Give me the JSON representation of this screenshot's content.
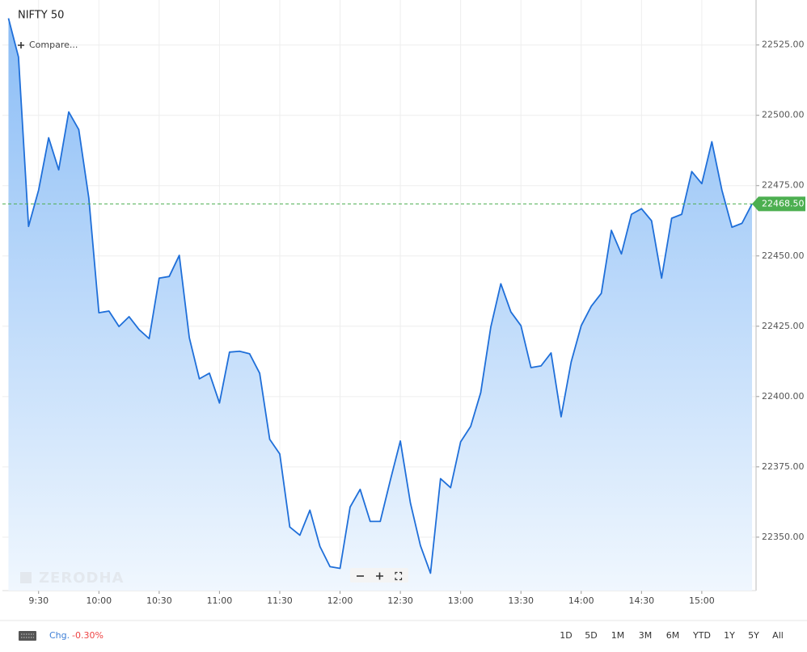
{
  "chart_data": {
    "type": "line",
    "title": "NIFTY 50",
    "x": [
      555,
      560,
      565,
      570,
      575,
      580,
      585,
      590,
      595,
      600,
      605,
      610,
      615,
      620,
      625,
      630,
      635,
      640,
      645,
      650,
      655,
      660,
      665,
      670,
      675,
      680,
      685,
      690,
      695,
      700,
      705,
      710,
      715,
      720,
      725,
      730,
      735,
      740,
      745,
      750,
      755,
      760,
      765,
      770,
      775,
      780,
      785,
      790,
      795,
      800,
      805,
      810,
      815,
      820,
      825,
      830,
      835,
      840,
      845,
      850,
      855,
      860,
      865,
      870,
      875,
      880,
      885,
      890,
      895,
      900,
      905,
      910,
      915,
      920,
      925
    ],
    "series": [
      {
        "name": "NIFTY 50",
        "color": "#1f6fd9",
        "values": [
          22534.5,
          22520.7,
          22460.5,
          22473.4,
          22492.0,
          22480.6,
          22501.2,
          22494.9,
          22470.5,
          22429.8,
          22430.4,
          22424.9,
          22428.4,
          22423.8,
          22420.6,
          22442.1,
          22442.7,
          22450.2,
          22420.9,
          22406.3,
          22408.3,
          22397.7,
          22415.8,
          22416.1,
          22415.2,
          22408.3,
          22384.8,
          22379.6,
          22353.6,
          22350.7,
          22359.6,
          22346.7,
          22339.5,
          22338.9,
          22360.7,
          22367.0,
          22355.6,
          22355.6,
          22370.2,
          22384.2,
          22362.2,
          22347.0,
          22337.2,
          22370.8,
          22367.6,
          22383.9,
          22389.4,
          22401.4,
          22424.7,
          22440.1,
          22430.1,
          22425.2,
          22410.3,
          22410.9,
          22415.5,
          22392.8,
          22412.3,
          22425.2,
          22432.1,
          22436.7,
          22459.1,
          22450.7,
          22464.8,
          22466.8,
          22462.5,
          22442.1,
          22463.4,
          22464.8,
          22480.0,
          22475.7,
          22490.6,
          22473.4,
          22460.2,
          22461.6,
          22468.5
        ]
      }
    ],
    "xlim": [
      552,
      927
    ],
    "xticks": [
      {
        "value": 570,
        "label": "9:30"
      },
      {
        "value": 600,
        "label": "10:00"
      },
      {
        "value": 630,
        "label": "10:30"
      },
      {
        "value": 660,
        "label": "11:00"
      },
      {
        "value": 690,
        "label": "11:30"
      },
      {
        "value": 720,
        "label": "12:00"
      },
      {
        "value": 750,
        "label": "12:30"
      },
      {
        "value": 780,
        "label": "13:00"
      },
      {
        "value": 810,
        "label": "13:30"
      },
      {
        "value": 840,
        "label": "14:00"
      },
      {
        "value": 870,
        "label": "14:30"
      },
      {
        "value": 900,
        "label": "15:00"
      }
    ],
    "ylim": [
      22331,
      22541
    ],
    "yticks": [
      {
        "value": 22350,
        "label": "22350.00"
      },
      {
        "value": 22375,
        "label": "22375.00"
      },
      {
        "value": 22400,
        "label": "22400.00"
      },
      {
        "value": 22425,
        "label": "22425.00"
      },
      {
        "value": 22450,
        "label": "22450.00"
      },
      {
        "value": 22475,
        "label": "22475.00"
      },
      {
        "value": 22500,
        "label": "22500.00"
      },
      {
        "value": 22525,
        "label": "22525.00"
      }
    ],
    "grid": true,
    "last_price": {
      "value": 22468.5,
      "label": "22468.50",
      "color": "#4caf50"
    }
  },
  "compare": "Compare...",
  "watermark": "ZERODHA",
  "footer": {
    "change_label": "Chg.",
    "change": "-0.30%",
    "ranges": [
      "1D",
      "5D",
      "1M",
      "3M",
      "6M",
      "YTD",
      "1Y",
      "5Y",
      "All"
    ]
  }
}
